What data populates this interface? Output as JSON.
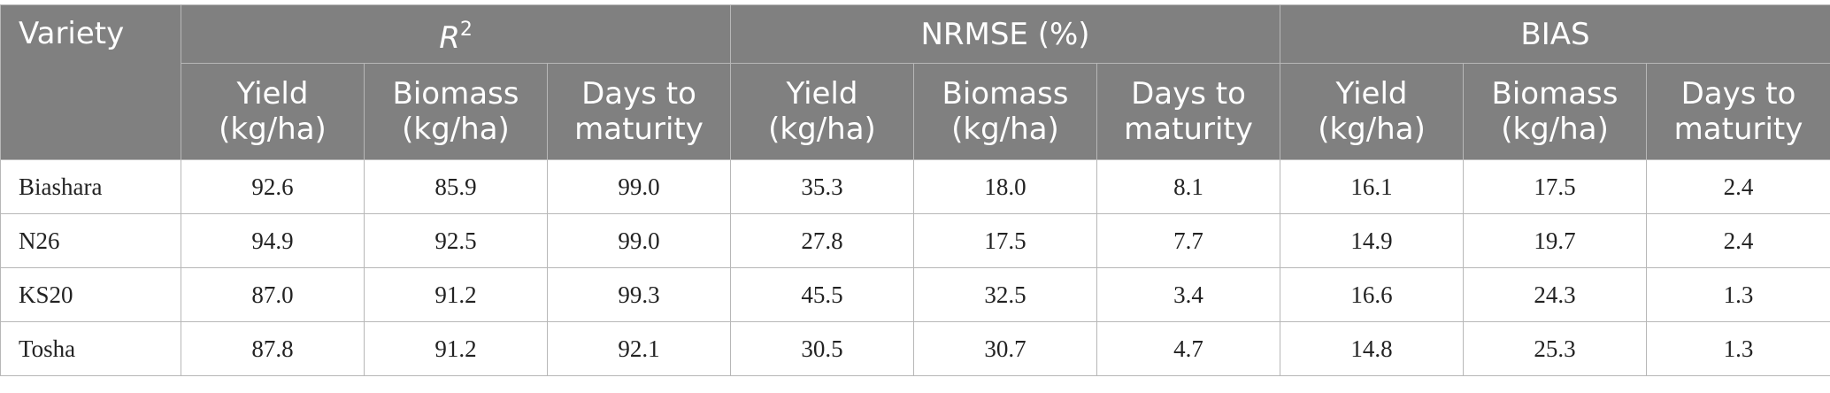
{
  "table": {
    "variety_header": "Variety",
    "groups": [
      {
        "label": "R",
        "sup": "2"
      },
      {
        "label": "NRMSE (%)",
        "sup": ""
      },
      {
        "label": "BIAS",
        "sup": ""
      }
    ],
    "subheaders": [
      {
        "line1": "Yield",
        "line2": "(kg/ha)"
      },
      {
        "line1": "Biomass",
        "line2": "(kg/ha)"
      },
      {
        "line1": "Days to",
        "line2": "maturity"
      },
      {
        "line1": "Yield",
        "line2": "(kg/ha)"
      },
      {
        "line1": "Biomass",
        "line2": "(kg/ha)"
      },
      {
        "line1": "Days to",
        "line2": "maturity"
      },
      {
        "line1": "Yield",
        "line2": "(kg/ha)"
      },
      {
        "line1": "Biomass",
        "line2": "(kg/ha)"
      },
      {
        "line1": "Days to",
        "line2": "maturity"
      }
    ],
    "rows": [
      {
        "variety": "Biashara",
        "values": [
          "92.6",
          "85.9",
          "99.0",
          "35.3",
          "18.0",
          "8.1",
          "16.1",
          "17.5",
          "2.4"
        ]
      },
      {
        "variety": "N26",
        "values": [
          "94.9",
          "92.5",
          "99.0",
          "27.8",
          "17.5",
          "7.7",
          "14.9",
          "19.7",
          "2.4"
        ]
      },
      {
        "variety": "KS20",
        "values": [
          "87.0",
          "91.2",
          "99.3",
          "45.5",
          "32.5",
          "3.4",
          "16.6",
          "24.3",
          "1.3"
        ]
      },
      {
        "variety": "Tosha",
        "values": [
          "87.8",
          "91.2",
          "92.1",
          "30.5",
          "30.7",
          "4.7",
          "14.8",
          "25.3",
          "1.3"
        ]
      }
    ]
  }
}
